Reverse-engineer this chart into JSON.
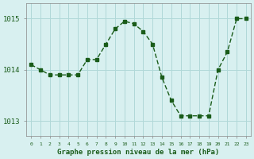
{
  "x": [
    0,
    1,
    2,
    3,
    4,
    5,
    6,
    7,
    8,
    9,
    10,
    11,
    12,
    13,
    14,
    15,
    16,
    17,
    18,
    19,
    20,
    21,
    22,
    23
  ],
  "y": [
    1014.1,
    1014.0,
    1013.9,
    1013.9,
    1013.9,
    1013.9,
    1014.2,
    1014.2,
    1014.5,
    1014.8,
    1014.95,
    1014.9,
    1014.75,
    1014.5,
    1013.85,
    1013.4,
    1013.1,
    1013.1,
    1013.1,
    1013.1,
    1014.0,
    1014.35,
    1015.0,
    1015.0
  ],
  "line_color": "#1a5c1a",
  "marker_color": "#1a5c1a",
  "bg_color": "#d8f0f0",
  "grid_color": "#b0d8d8",
  "xlabel": "Graphe pression niveau de la mer (hPa)",
  "xlabel_color": "#1a5c1a",
  "yticks": [
    1013,
    1014,
    1015
  ],
  "ylim": [
    1012.7,
    1015.3
  ],
  "xlim": [
    -0.5,
    23.5
  ],
  "xtick_labels": [
    "0",
    "1",
    "2",
    "3",
    "4",
    "5",
    "6",
    "7",
    "8",
    "9",
    "10",
    "11",
    "12",
    "13",
    "14",
    "15",
    "16",
    "17",
    "18",
    "19",
    "20",
    "21",
    "22",
    "23"
  ]
}
